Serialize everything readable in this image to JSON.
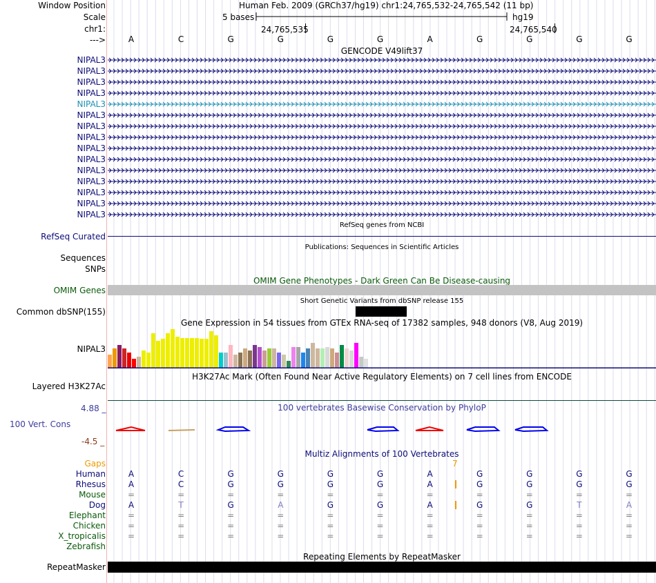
{
  "header": {
    "window_position_label": "Window Position",
    "scale_label": "Scale",
    "chrom_label": "chr1:",
    "strand_label": "--->",
    "assembly_text": "Human Feb. 2009 (GRCh37/hg19)   chr1:24,765,532-24,765,542 (11 bp)",
    "scale_text": "5 bases",
    "db_text": "hg19",
    "coord_left": "24,765,535",
    "coord_right": "24,765,540"
  },
  "bases": [
    "A",
    "C",
    "G",
    "G",
    "G",
    "G",
    "A",
    "G",
    "G",
    "G",
    "G"
  ],
  "gencode": {
    "title": "GENCODE V49lift37",
    "rows": [
      "NIPAL3",
      "NIPAL3",
      "NIPAL3",
      "NIPAL3",
      "NIPAL3",
      "NIPAL3",
      "NIPAL3",
      "NIPAL3",
      "NIPAL3",
      "NIPAL3",
      "NIPAL3",
      "NIPAL3",
      "NIPAL3",
      "NIPAL3",
      "NIPAL3"
    ],
    "highlight_index": 4,
    "colors": {
      "normal": "#0c0c78",
      "highlight": "#1e90b4"
    }
  },
  "refseq": {
    "title": "RefSeq genes from NCBI",
    "label": "RefSeq Curated",
    "color": "#0c0c78"
  },
  "publications": {
    "title": "Publications: Sequences in Scientific Articles",
    "labels": [
      "Sequences",
      "SNPs"
    ]
  },
  "omim": {
    "title": "OMIM Gene Phenotypes - Dark Green Can Be Disease-causing",
    "label": "OMIM Genes",
    "color": "#0a5a0a",
    "bar_color": "#c3c3c3"
  },
  "dbsnp": {
    "title": "Short Genetic Variants from dbSNP release 155",
    "label": "Common dbSNP(155)"
  },
  "gtex": {
    "title": "Gene Expression in 54 tissues from GTEx RNA-seq of 17382 samples, 948 donors (V8, Aug 2019)",
    "label": "NIPAL3",
    "values": [
      0.35,
      0.5,
      0.6,
      0.5,
      0.4,
      0.25,
      0.3,
      0.45,
      0.4,
      0.9,
      0.7,
      0.75,
      0.9,
      1.0,
      0.8,
      0.78,
      0.78,
      0.78,
      0.78,
      0.75,
      0.75,
      0.95,
      0.85,
      0.4,
      0.4,
      0.6,
      0.35,
      0.4,
      0.5,
      0.45,
      0.6,
      0.55,
      0.45,
      0.5,
      0.5,
      0.4,
      0.35,
      0.2,
      0.55,
      0.55,
      0.4,
      0.5,
      0.65,
      0.5,
      0.5,
      0.55,
      0.5,
      0.4,
      0.6,
      0.5,
      0.45,
      0.65,
      0.3,
      0.25
    ],
    "colors": [
      "#ffa54f",
      "#ee9a00",
      "#8b1c62",
      "#cd2626",
      "#ee0000",
      "#ff0000",
      "#cdb79e",
      "#eeee00",
      "#eeee00",
      "#eeee00",
      "#eeee00",
      "#eeee00",
      "#eeee00",
      "#eeee00",
      "#eeee00",
      "#eeee00",
      "#eeee00",
      "#eeee00",
      "#eeee00",
      "#eeee00",
      "#eeee00",
      "#eeee00",
      "#eeee00",
      "#00cdcd",
      "#9ac0cd",
      "#ffb6c1",
      "#cdb79e",
      "#8b7355",
      "#cdaa7d",
      "#8b7355",
      "#7a378b",
      "#b452cd",
      "#cd9b9b",
      "#9acd32",
      "#cdb79e",
      "#7a67ee",
      "#cdc9a5",
      "#2e8b57",
      "#ee82ee",
      "#a6a6a6",
      "#1c86ee",
      "#4682b4",
      "#cdb79e",
      "#cdb79e",
      "#b4eeb4",
      "#d9d9d9",
      "#cdaa7d",
      "#cd8c95",
      "#008b45",
      "#eed5d2",
      "#d9d9d9",
      "#ff00ff",
      "#c1cdc1",
      "#e0e0e0"
    ]
  },
  "h3k27ac": {
    "title": "H3K27Ac Mark (Often Found Near Active Regulatory Elements) on 7 cell lines from ENCODE",
    "label": "Layered H3K27Ac"
  },
  "phylop": {
    "title": "100 vertebrates Basewise Conservation by PhyloP",
    "label": "100 Vert. Cons",
    "max": "4.88 _",
    "min": "-4.5 _",
    "color": "#3c3c9c",
    "min_color": "#8b3a1a"
  },
  "multiz": {
    "title": "Multiz Alignments of 100 Vertebrates",
    "gaps_label": "Gaps",
    "gap_marker": "7",
    "species": [
      {
        "name": "Human",
        "color": "#0c0c78",
        "seq": [
          "A",
          "C",
          "G",
          "G",
          "G",
          "G",
          "A",
          "G",
          "G",
          "G",
          "G"
        ],
        "seqcolor": "#0c0c78"
      },
      {
        "name": "Rhesus",
        "color": "#0c0c78",
        "seq": [
          "A",
          "C",
          "G",
          "G",
          "G",
          "G",
          "A",
          "G",
          "G",
          "G",
          "G"
        ],
        "seqcolor": "#0c0c78"
      },
      {
        "name": "Mouse",
        "color": "#0a5a0a",
        "seq": [
          "=",
          "=",
          "=",
          "=",
          "=",
          "=",
          "=",
          "=",
          "=",
          "=",
          "="
        ],
        "seqcolor": "#7f7f7f"
      },
      {
        "name": "Dog",
        "color": "#0c0c78",
        "seq": [
          "A",
          "T",
          "G",
          "A",
          "G",
          "G",
          "A",
          "G",
          "G",
          "T",
          "A"
        ],
        "seqcolor": "#0c0c78"
      },
      {
        "name": "Elephant",
        "color": "#0a5a0a",
        "seq": [
          "=",
          "=",
          "=",
          "=",
          "=",
          "=",
          "=",
          "=",
          "=",
          "=",
          "="
        ],
        "seqcolor": "#7f7f7f"
      },
      {
        "name": "Chicken",
        "color": "#0a5a0a",
        "seq": [
          "=",
          "=",
          "=",
          "=",
          "=",
          "=",
          "=",
          "=",
          "=",
          "=",
          "="
        ],
        "seqcolor": "#7f7f7f"
      },
      {
        "name": "X_tropicalis",
        "color": "#0a5a0a",
        "seq": [
          "=",
          "=",
          "=",
          "=",
          "=",
          "=",
          "=",
          "=",
          "=",
          "=",
          "="
        ],
        "seqcolor": "#7f7f7f"
      },
      {
        "name": "Zebrafish",
        "color": "#0a5a0a",
        "seq": [],
        "seqcolor": "#7f7f7f"
      }
    ]
  },
  "repeatmasker": {
    "title": "Repeating Elements by RepeatMasker",
    "label": "RepeatMasker"
  }
}
